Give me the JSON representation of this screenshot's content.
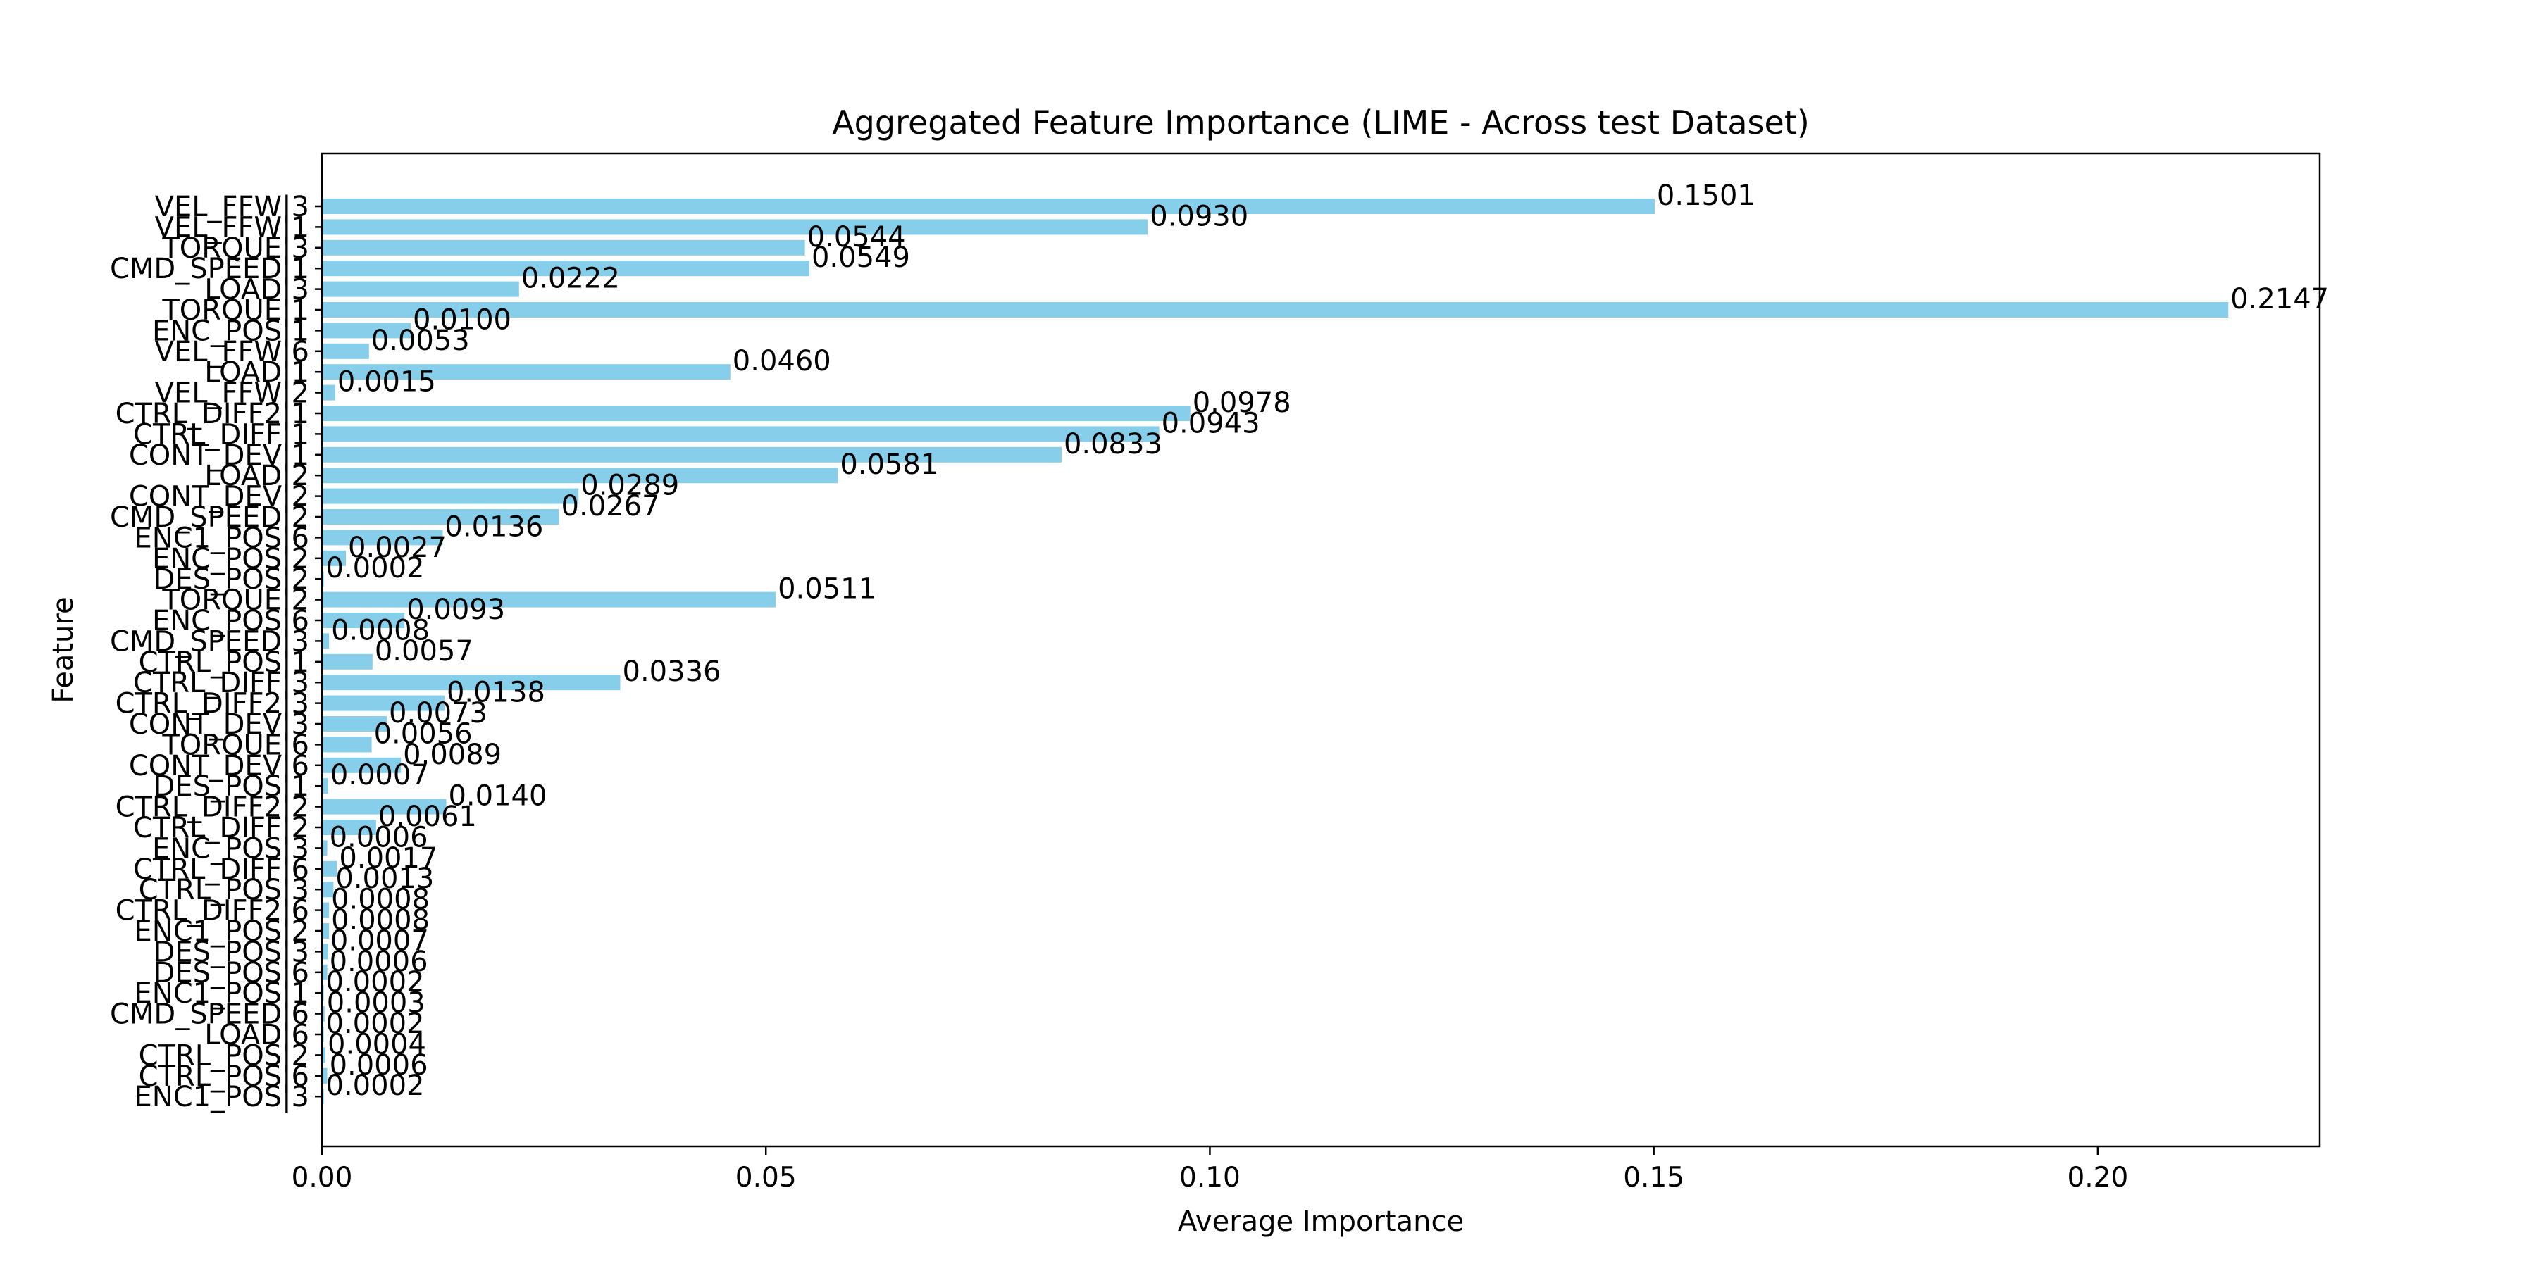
{
  "chart_data": {
    "type": "bar",
    "orientation": "horizontal",
    "title": "Aggregated Feature Importance (LIME - Across test Dataset)",
    "xlabel": "Average Importance",
    "ylabel": "Feature",
    "xlim": [
      0,
      0.225
    ],
    "x_ticks": [
      0.0,
      0.05,
      0.1,
      0.15,
      0.2
    ],
    "x_tick_labels": [
      "0.00",
      "0.05",
      "0.10",
      "0.15",
      "0.20"
    ],
    "bar_color": "#87ceeb",
    "grid": false,
    "legend": "none",
    "categories": [
      "VEL_FFW|3",
      "VEL_FFW|1",
      "TORQUE|3",
      "CMD_SPEED|1",
      "LOAD|3",
      "TORQUE|1",
      "ENC_POS|1",
      "VEL_FFW|6",
      "LOAD|1",
      "VEL_FFW|2",
      "CTRL_DIFF2|1",
      "CTRL_DIFF|1",
      "CONT_DEV|1",
      "LOAD|2",
      "CONT_DEV|2",
      "CMD_SPEED|2",
      "ENC1_POS|6",
      "ENC_POS|2",
      "DES_POS|2",
      "TORQUE|2",
      "ENC_POS|6",
      "CMD_SPEED|3",
      "CTRL_POS|1",
      "CTRL_DIFF|3",
      "CTRL_DIFF2|3",
      "CONT_DEV|3",
      "TORQUE|6",
      "CONT_DEV|6",
      "DES_POS|1",
      "CTRL_DIFF2|2",
      "CTRL_DIFF|2",
      "ENC_POS|3",
      "CTRL_DIFF|6",
      "CTRL_POS|3",
      "CTRL_DIFF2|6",
      "ENC1_POS|2",
      "DES_POS|3",
      "DES_POS|6",
      "ENC1_POS|1",
      "CMD_SPEED|6",
      "LOAD|6",
      "CTRL_POS|2",
      "CTRL_POS|6",
      "ENC1_POS|3"
    ],
    "values": [
      0.1501,
      0.093,
      0.0544,
      0.0549,
      0.0222,
      0.2147,
      0.01,
      0.0053,
      0.046,
      0.0015,
      0.0978,
      0.0943,
      0.0833,
      0.0581,
      0.0289,
      0.0267,
      0.0136,
      0.0027,
      0.0002,
      0.0511,
      0.0093,
      0.0008,
      0.0057,
      0.0336,
      0.0138,
      0.0073,
      0.0056,
      0.0089,
      0.0007,
      0.014,
      0.0061,
      0.0006,
      0.0017,
      0.0013,
      0.0008,
      0.0008,
      0.0007,
      0.0006,
      0.0002,
      0.0003,
      0.0002,
      0.0004,
      0.0006,
      0.0002
    ],
    "value_labels": [
      "0.1501",
      "0.0930",
      "0.0544",
      "0.0549",
      "0.0222",
      "0.2147",
      "0.0100",
      "0.0053",
      "0.0460",
      "0.0015",
      "0.0978",
      "0.0943",
      "0.0833",
      "0.0581",
      "0.0289",
      "0.0267",
      "0.0136",
      "0.0027",
      "0.0002",
      "0.0511",
      "0.0093",
      "0.0008",
      "0.0057",
      "0.0336",
      "0.0138",
      "0.0073",
      "0.0056",
      "0.0089",
      "0.0007",
      "0.0140",
      "0.0061",
      "0.0006",
      "0.0017",
      "0.0013",
      "0.0008",
      "0.0008",
      "0.0007",
      "0.0006",
      "0.0002",
      "0.0003",
      "0.0002",
      "0.0004",
      "0.0006",
      "0.0002"
    ]
  }
}
